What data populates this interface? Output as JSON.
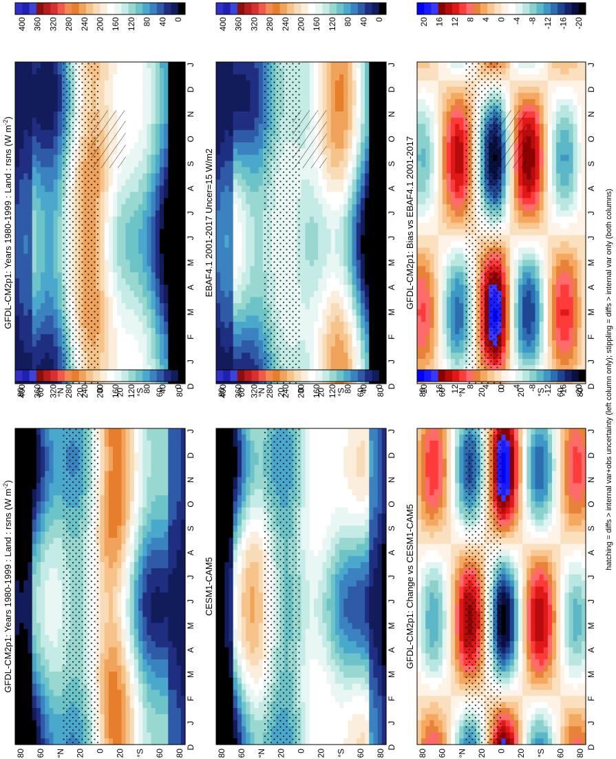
{
  "footnote": "hatching = diffs > internal var+obs uncertainty (left column only); stippling = diffs > internal var only (both columns)",
  "palettes": {
    "abs": [
      "#3030c8",
      "#2020b0",
      "#3a44d8",
      "#8a1010",
      "#b81c1c",
      "#d83030",
      "#ef5a4a",
      "#f08a50",
      "#e77e2c",
      "#f0a35a",
      "#f6c38a",
      "#f8dcb8",
      "#fbeedd",
      "#ffffff",
      "#e8f6f4",
      "#c4ebe5",
      "#98d8d0",
      "#6cc4c8",
      "#4aa8cc",
      "#3b82c0",
      "#2f5aa8",
      "#1f2e80",
      "#121c5a",
      "#000000"
    ],
    "diff": [
      "#0000ff",
      "#1b1bff",
      "#3838ff",
      "#8b0000",
      "#b80c0c",
      "#e01818",
      "#ff3a3a",
      "#ff6a6a",
      "#e8823a",
      "#f5a860",
      "#f9c792",
      "#fbe0bf",
      "#fef3e6",
      "#ffffff",
      "#e0f5f2",
      "#b8e6e0",
      "#8ad0cc",
      "#5cb8c8",
      "#3e98c6",
      "#2d6eb0",
      "#1e4692",
      "#14246a",
      "#081040",
      "#000000"
    ]
  },
  "chart_data": [
    {
      "type": "heatmap",
      "panel": "top-left",
      "title": "GFDL-CM2p1: Years 1980-1999 : Land : rsns (W m",
      "title_sup": "-2",
      "title_end": ")",
      "xlabels": [
        "D",
        "J",
        "F",
        "M",
        "A",
        "M",
        "J",
        "J",
        "A",
        "S",
        "O",
        "N",
        "D",
        "J"
      ],
      "ylabels": [
        "80",
        "60",
        "°N",
        "20",
        "0",
        "20",
        "°S",
        "60",
        "80"
      ],
      "colorbar": [
        "400",
        "360",
        "320",
        "280",
        "240",
        "200",
        "160",
        "120",
        "80",
        "40",
        "0"
      ],
      "scale": "abs",
      "value_range": [
        0,
        400
      ],
      "hatching": true,
      "stippling": true
    },
    {
      "type": "heatmap",
      "panel": "top-right",
      "title": "GFDL-CM2p1: Years 1980-1999 : Land : rsns (W m",
      "title_sup": "-2",
      "title_end": ")",
      "xlabels": [
        "D",
        "J",
        "F",
        "M",
        "A",
        "M",
        "J",
        "J",
        "A",
        "S",
        "O",
        "N",
        "D",
        "J"
      ],
      "ylabels": [
        "80",
        "60",
        "°N",
        "20",
        "0",
        "20",
        "°S",
        "60",
        "80"
      ],
      "colorbar": [
        "400",
        "360",
        "320",
        "280",
        "240",
        "200",
        "160",
        "120",
        "80",
        "40",
        "0"
      ],
      "scale": "abs",
      "value_range": [
        0,
        400
      ],
      "hatching": false,
      "stippling": true
    },
    {
      "type": "heatmap",
      "panel": "middle-left",
      "title": "EBAF4.1 2001-2017 Uncer=15 W/m2",
      "title_sup": "",
      "title_end": "",
      "xlabels": [
        "D",
        "J",
        "F",
        "M",
        "A",
        "M",
        "J",
        "J",
        "A",
        "S",
        "O",
        "N",
        "D",
        "J"
      ],
      "ylabels": [
        "80",
        "60",
        "°N",
        "20",
        "0",
        "20",
        "°S",
        "60",
        "80"
      ],
      "colorbar": [
        "400",
        "360",
        "320",
        "280",
        "240",
        "200",
        "160",
        "120",
        "80",
        "40",
        "0"
      ],
      "scale": "abs",
      "value_range": [
        0,
        400
      ],
      "hatching": true,
      "stippling": true
    },
    {
      "type": "heatmap",
      "panel": "middle-right",
      "title": "CESM1-CAM5",
      "title_sup": "",
      "title_end": "",
      "xlabels": [
        "D",
        "J",
        "F",
        "M",
        "A",
        "M",
        "J",
        "J",
        "A",
        "S",
        "O",
        "N",
        "D",
        "J"
      ],
      "ylabels": [
        "80",
        "60",
        "°N",
        "20",
        "0",
        "20",
        "°S",
        "60",
        "80"
      ],
      "colorbar": [
        "400",
        "360",
        "320",
        "280",
        "240",
        "200",
        "160",
        "120",
        "80",
        "40",
        "0"
      ],
      "scale": "abs",
      "value_range": [
        0,
        400
      ],
      "hatching": false,
      "stippling": true
    },
    {
      "type": "heatmap",
      "panel": "bottom-left",
      "title": "GFDL-CM2p1: Bias vs EBAF4.1 2001-2017",
      "title_sup": "",
      "title_end": "",
      "xlabels": [
        "D",
        "J",
        "F",
        "M",
        "A",
        "M",
        "J",
        "J",
        "A",
        "S",
        "O",
        "N",
        "D",
        "J"
      ],
      "ylabels": [
        "80",
        "60",
        "°N",
        "20",
        "0",
        "20",
        "°S",
        "60",
        "80"
      ],
      "colorbar": [
        "20",
        "16",
        "12",
        "8",
        "4",
        "0",
        "-4",
        "-8",
        "-12",
        "-16",
        "-20"
      ],
      "scale": "diff",
      "value_range": [
        -20,
        20
      ],
      "hatching": true,
      "stippling": true
    },
    {
      "type": "heatmap",
      "panel": "bottom-right",
      "title": "GFDL-CM2p1: Change vs CESM1-CAM5",
      "title_sup": "",
      "title_end": "",
      "xlabels": [
        "D",
        "J",
        "F",
        "M",
        "A",
        "M",
        "J",
        "J",
        "A",
        "S",
        "O",
        "N",
        "D",
        "J"
      ],
      "ylabels": [
        "80",
        "60",
        "°N",
        "20",
        "0",
        "20",
        "°S",
        "60",
        "80"
      ],
      "colorbar": [
        "20",
        "16",
        "12",
        "8",
        "4",
        "0",
        "-4",
        "-8",
        "-12",
        "-16",
        "-20"
      ],
      "scale": "diff",
      "value_range": [
        -20,
        20
      ],
      "hatching": false,
      "stippling": true
    }
  ]
}
